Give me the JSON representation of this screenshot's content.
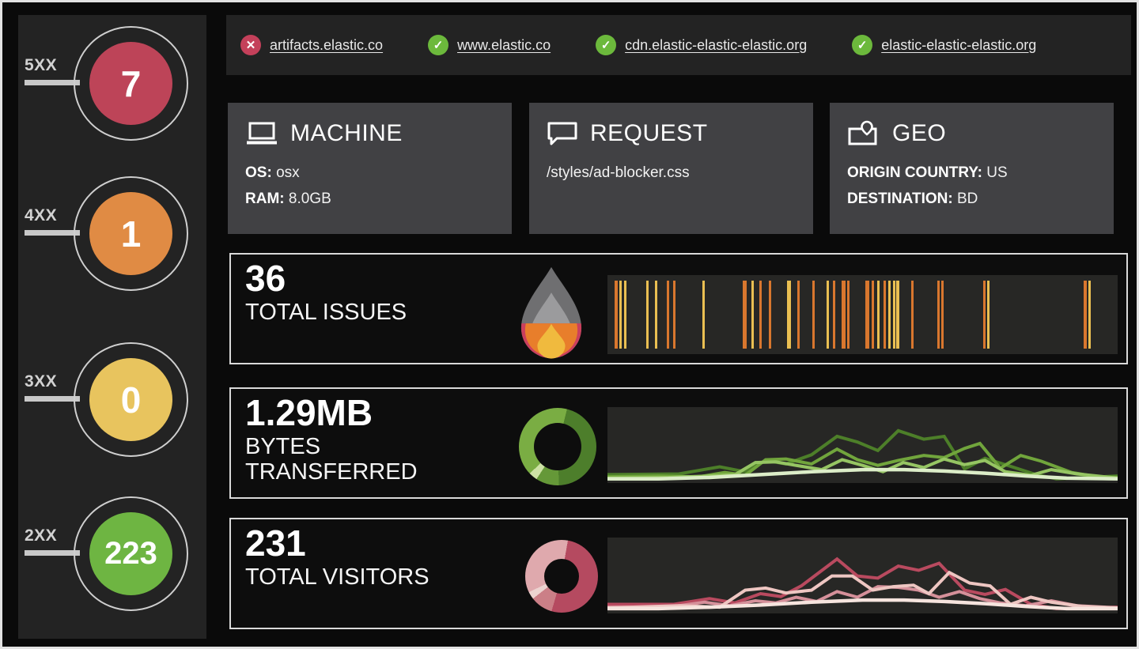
{
  "sidebar": {
    "items": [
      {
        "label": "5XX",
        "value": "7",
        "color": "#bd4458"
      },
      {
        "label": "4XX",
        "value": "1",
        "color": "#e08b44"
      },
      {
        "label": "3XX",
        "value": "0",
        "color": "#e8c45e"
      },
      {
        "label": "2XX",
        "value": "223",
        "color": "#6eb542"
      }
    ]
  },
  "domains": {
    "items": [
      {
        "label": "artifacts.elastic.co",
        "status": "error",
        "glyph": "✕",
        "color": "#c4405a"
      },
      {
        "label": "www.elastic.co",
        "status": "ok",
        "glyph": "✓",
        "color": "#6cb93c"
      },
      {
        "label": "cdn.elastic-elastic-elastic.org",
        "status": "ok",
        "glyph": "✓",
        "color": "#6cb93c"
      },
      {
        "label": "elastic-elastic-elastic.org",
        "status": "ok",
        "glyph": "✓",
        "color": "#6cb93c"
      }
    ]
  },
  "cards": {
    "machine": {
      "title": "MACHINE",
      "fields": [
        {
          "label": "OS:",
          "value": "osx"
        },
        {
          "label": "RAM:",
          "value": "8.0GB"
        }
      ]
    },
    "request": {
      "title": "REQUEST",
      "value": "/styles/ad-blocker.css"
    },
    "geo": {
      "title": "GEO",
      "fields": [
        {
          "label": "ORIGIN COUNTRY:",
          "value": "US"
        },
        {
          "label": "DESTINATION:",
          "value": "BD"
        }
      ]
    }
  },
  "metrics": {
    "issues": {
      "value": "36",
      "label": "TOTAL ISSUES"
    },
    "bytes": {
      "value": "1.29MB",
      "label": "BYTES TRANSFERRED"
    },
    "visitors": {
      "value": "231",
      "label": "TOTAL VISITORS"
    }
  },
  "icons": {
    "flame": {
      "outer": "#6f6f71",
      "inner": "#9b9b9d",
      "red": "#ca3f5d",
      "orange": "#e87e2b",
      "yellow": "#f0ba3e"
    }
  },
  "chart_data": [
    {
      "id": "issues_ticks",
      "type": "bar",
      "title": "Total issues event strip",
      "colors": {
        "o": "#d9772e",
        "y": "#eabf52"
      },
      "ticks": [
        [
          1.4,
          4,
          "o"
        ],
        [
          2.3,
          3,
          "y"
        ],
        [
          3.2,
          3,
          "y"
        ],
        [
          7.6,
          3,
          "y"
        ],
        [
          9.3,
          3,
          "y"
        ],
        [
          11.7,
          3,
          "o"
        ],
        [
          12.8,
          3,
          "o"
        ],
        [
          18.6,
          3,
          "y"
        ],
        [
          26.5,
          5,
          "o"
        ],
        [
          28.2,
          3,
          "y"
        ],
        [
          29.8,
          3,
          "o"
        ],
        [
          31.6,
          3,
          "o"
        ],
        [
          35.2,
          5,
          "y"
        ],
        [
          37.2,
          3,
          "o"
        ],
        [
          40.2,
          3,
          "o"
        ],
        [
          42.9,
          3,
          "y"
        ],
        [
          44.2,
          3,
          "o"
        ],
        [
          45.9,
          5,
          "o"
        ],
        [
          47.0,
          3,
          "o"
        ],
        [
          50.6,
          5,
          "o"
        ],
        [
          51.8,
          3,
          "o"
        ],
        [
          52.9,
          3,
          "y"
        ],
        [
          54.1,
          3,
          "o"
        ],
        [
          55.1,
          3,
          "y"
        ],
        [
          55.9,
          3,
          "y"
        ],
        [
          56.6,
          4,
          "y"
        ],
        [
          59.5,
          3,
          "o"
        ],
        [
          64.7,
          3,
          "o"
        ],
        [
          65.5,
          3,
          "o"
        ],
        [
          73.6,
          3,
          "o"
        ],
        [
          74.4,
          3,
          "y"
        ],
        [
          93.4,
          4,
          "o"
        ],
        [
          94.3,
          3,
          "y"
        ]
      ]
    },
    {
      "id": "bytes_donut",
      "type": "pie",
      "title": "Bytes transferred breakdown",
      "segments": [
        {
          "color": "#7aad43",
          "from": 0,
          "to": 14
        },
        {
          "color": "#4d7e2b",
          "from": 14,
          "to": 178
        },
        {
          "color": "#659838",
          "from": 178,
          "to": 213
        },
        {
          "color": "#cde2a5",
          "from": 213,
          "to": 226
        },
        {
          "color": "#7aad43",
          "from": 226,
          "to": 360
        }
      ]
    },
    {
      "id": "bytes_lines",
      "type": "line",
      "title": "Bytes transferred over time",
      "ylim": [
        0,
        100
      ],
      "series": [
        {
          "name": "dark-green",
          "color": "#4d7f29",
          "width": 4,
          "points": [
            [
              0,
              9
            ],
            [
              14,
              10
            ],
            [
              22,
              20
            ],
            [
              27,
              13
            ],
            [
              31,
              29
            ],
            [
              35,
              24
            ],
            [
              40,
              37
            ],
            [
              45,
              63
            ],
            [
              49,
              55
            ],
            [
              53,
              43
            ],
            [
              57,
              71
            ],
            [
              62,
              59
            ],
            [
              66,
              63
            ],
            [
              68,
              40
            ],
            [
              70,
              17
            ],
            [
              74,
              32
            ],
            [
              78,
              23
            ],
            [
              84,
              9
            ],
            [
              88,
              3
            ],
            [
              100,
              7
            ]
          ]
        },
        {
          "name": "mid-green",
          "color": "#71a53c",
          "width": 4,
          "points": [
            [
              0,
              6
            ],
            [
              10,
              7
            ],
            [
              18,
              6
            ],
            [
              23,
              12
            ],
            [
              27,
              8
            ],
            [
              31,
              30
            ],
            [
              35,
              31
            ],
            [
              40,
              24
            ],
            [
              45,
              45
            ],
            [
              49,
              30
            ],
            [
              53,
              22
            ],
            [
              57,
              29
            ],
            [
              62,
              36
            ],
            [
              66,
              33
            ],
            [
              70,
              46
            ],
            [
              73,
              53
            ],
            [
              77,
              18
            ],
            [
              81,
              36
            ],
            [
              85,
              28
            ],
            [
              91,
              12
            ],
            [
              96,
              6
            ],
            [
              100,
              5
            ]
          ]
        },
        {
          "name": "bright-green",
          "color": "#96c563",
          "width": 4,
          "points": [
            [
              0,
              4
            ],
            [
              12,
              5
            ],
            [
              20,
              7
            ],
            [
              25,
              9
            ],
            [
              29,
              26
            ],
            [
              33,
              27
            ],
            [
              37,
              22
            ],
            [
              42,
              16
            ],
            [
              46,
              30
            ],
            [
              50,
              22
            ],
            [
              54,
              13
            ],
            [
              58,
              26
            ],
            [
              62,
              19
            ],
            [
              66,
              31
            ],
            [
              70,
              23
            ],
            [
              74,
              29
            ],
            [
              78,
              13
            ],
            [
              83,
              8
            ],
            [
              87,
              16
            ],
            [
              92,
              10
            ],
            [
              100,
              4
            ]
          ]
        },
        {
          "name": "pale-green",
          "color": "#dcedc8",
          "width": 4.5,
          "points": [
            [
              0,
              3
            ],
            [
              10,
              3
            ],
            [
              20,
              5
            ],
            [
              30,
              9
            ],
            [
              40,
              13
            ],
            [
              50,
              16
            ],
            [
              58,
              16
            ],
            [
              66,
              14
            ],
            [
              74,
              11
            ],
            [
              82,
              7
            ],
            [
              90,
              4
            ],
            [
              100,
              3
            ]
          ]
        }
      ]
    },
    {
      "id": "visitors_donut",
      "type": "pie",
      "title": "Total visitors breakdown",
      "segments": [
        {
          "color": "#dfa9ad",
          "from": 0,
          "to": 10
        },
        {
          "color": "#b54a60",
          "from": 10,
          "to": 196
        },
        {
          "color": "#cb7f87",
          "from": 196,
          "to": 232
        },
        {
          "color": "#ecd3d0",
          "from": 232,
          "to": 244
        },
        {
          "color": "#dfa9ad",
          "from": 244,
          "to": 360
        }
      ]
    },
    {
      "id": "visitors_lines",
      "type": "line",
      "title": "Visitors over time",
      "ylim": [
        0,
        100
      ],
      "series": [
        {
          "name": "dark-rose",
          "color": "#b94a5f",
          "width": 4,
          "points": [
            [
              0,
              10
            ],
            [
              13,
              10
            ],
            [
              20,
              18
            ],
            [
              25,
              12
            ],
            [
              30,
              25
            ],
            [
              34,
              21
            ],
            [
              38,
              36
            ],
            [
              45,
              74
            ],
            [
              49,
              50
            ],
            [
              53,
              47
            ],
            [
              57,
              64
            ],
            [
              61,
              58
            ],
            [
              65,
              68
            ],
            [
              70,
              30
            ],
            [
              74,
              24
            ],
            [
              78,
              31
            ],
            [
              83,
              10
            ],
            [
              88,
              4
            ],
            [
              100,
              6
            ]
          ]
        },
        {
          "name": "mid-rose",
          "color": "#d5909a",
          "width": 4,
          "points": [
            [
              0,
              6
            ],
            [
              12,
              6
            ],
            [
              19,
              13
            ],
            [
              24,
              8
            ],
            [
              29,
              15
            ],
            [
              33,
              12
            ],
            [
              37,
              20
            ],
            [
              41,
              14
            ],
            [
              45,
              28
            ],
            [
              49,
              20
            ],
            [
              53,
              35
            ],
            [
              57,
              34
            ],
            [
              61,
              30
            ],
            [
              65,
              20
            ],
            [
              69,
              28
            ],
            [
              73,
              18
            ],
            [
              77,
              12
            ],
            [
              82,
              8
            ],
            [
              87,
              15
            ],
            [
              92,
              8
            ],
            [
              100,
              5
            ]
          ]
        },
        {
          "name": "light-pink",
          "color": "#eec6c2",
          "width": 4,
          "points": [
            [
              0,
              5
            ],
            [
              14,
              8
            ],
            [
              22,
              6
            ],
            [
              27,
              30
            ],
            [
              31,
              33
            ],
            [
              35,
              26
            ],
            [
              40,
              30
            ],
            [
              44,
              50
            ],
            [
              48,
              50
            ],
            [
              52,
              30
            ],
            [
              56,
              35
            ],
            [
              60,
              37
            ],
            [
              63,
              25
            ],
            [
              67,
              55
            ],
            [
              71,
              40
            ],
            [
              75,
              36
            ],
            [
              79,
              10
            ],
            [
              83,
              20
            ],
            [
              87,
              13
            ],
            [
              93,
              7
            ],
            [
              100,
              5
            ]
          ]
        },
        {
          "name": "pale-pink",
          "color": "#f6e4de",
          "width": 4.5,
          "points": [
            [
              0,
              4
            ],
            [
              10,
              4
            ],
            [
              20,
              6
            ],
            [
              30,
              9
            ],
            [
              40,
              13
            ],
            [
              50,
              16
            ],
            [
              58,
              16
            ],
            [
              66,
              14
            ],
            [
              74,
              11
            ],
            [
              82,
              7
            ],
            [
              90,
              4
            ],
            [
              100,
              4
            ]
          ]
        }
      ]
    }
  ]
}
